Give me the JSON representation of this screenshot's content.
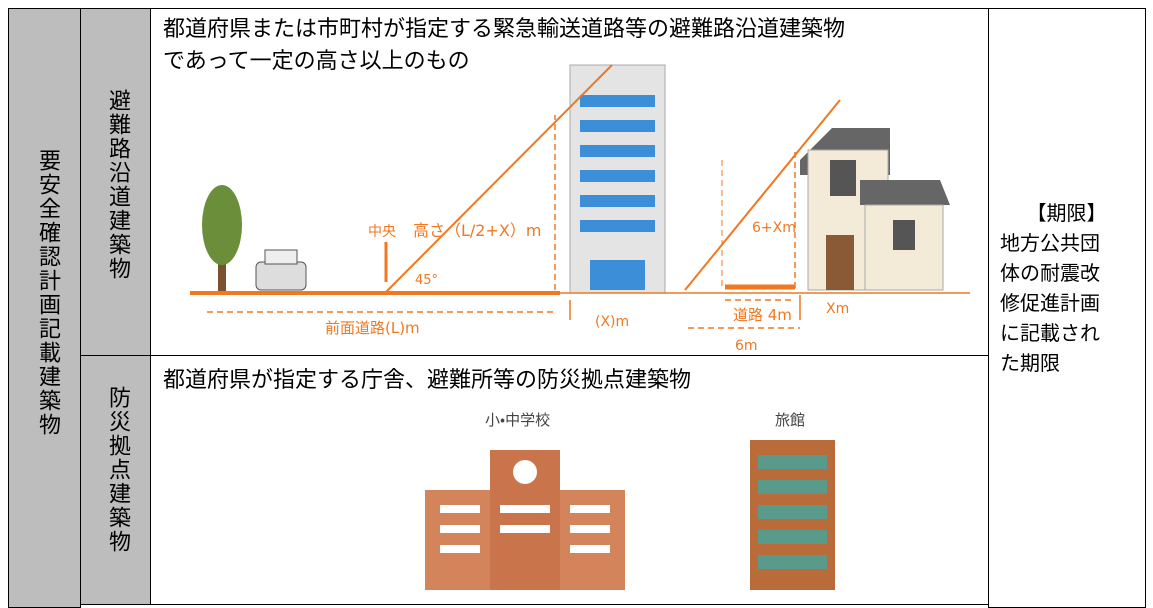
{
  "left_label": "要安全確認計画記載建築物",
  "rows": [
    {
      "label": "避難路沿道建築物",
      "title_lines": [
        "都道府県または市町村が指定する緊急輸送道路等の避難路沿道建築物",
        "であって一定の高さ以上のもの"
      ],
      "diagram": {
        "center": "中央",
        "height": "高さ（L/2+X）m",
        "angle": "45°",
        "road_width": "前面道路(L)m",
        "setback": "(X)m",
        "height_small": "6+Xm",
        "road_small": "道路 4m",
        "setback_small": "Xm",
        "six": "6m"
      }
    },
    {
      "label": "防災拠点建築物",
      "title_lines": [
        "都道府県が指定する庁舎、避難所等の防災拠点建築物"
      ],
      "captions": [
        "小・中学校",
        "旅館"
      ]
    }
  ],
  "deadline": {
    "heading": "【期限】",
    "lines": [
      "地方公共団",
      "体の耐震改",
      "修促進計画",
      "に記載され",
      "た期限"
    ]
  }
}
